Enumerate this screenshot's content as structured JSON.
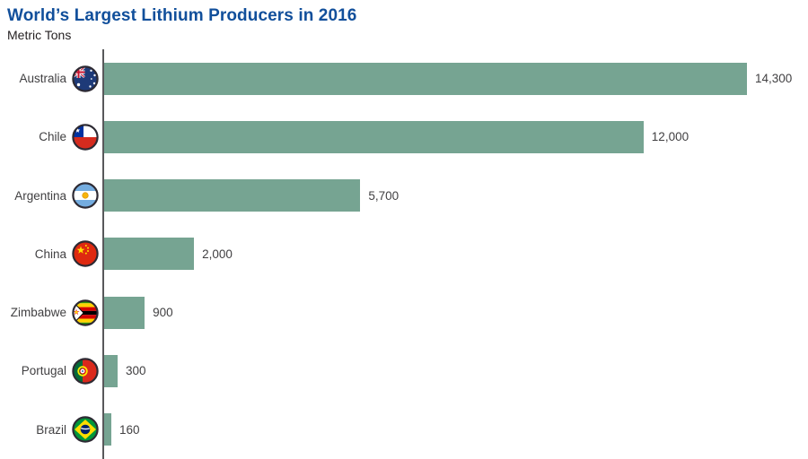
{
  "header": {
    "title": "World’s Largest Lithium Producers in 2016",
    "subtitle": "Metric Tons"
  },
  "colors": {
    "title": "#114f9b",
    "bar": "#76a492",
    "axis": "#58595b",
    "text": "#414042"
  },
  "chart_data": {
    "type": "bar",
    "orientation": "horizontal",
    "title": "World’s Largest Lithium Producers in 2016",
    "unit_label": "Metric Tons",
    "categories": [
      "Australia",
      "Chile",
      "Argentina",
      "China",
      "Zimbabwe",
      "Portugal",
      "Brazil"
    ],
    "values": [
      14300,
      12000,
      5700,
      2000,
      900,
      300,
      160
    ],
    "value_labels": [
      "14,300",
      "12,000",
      "5,700",
      "2,000",
      "900",
      "300",
      "160"
    ],
    "flag_icons": [
      "australia-flag-icon",
      "chile-flag-icon",
      "argentina-flag-icon",
      "china-flag-icon",
      "zimbabwe-flag-icon",
      "portugal-flag-icon",
      "brazil-flag-icon"
    ],
    "xlim": [
      0,
      14300
    ],
    "grid": false,
    "legend": false
  }
}
